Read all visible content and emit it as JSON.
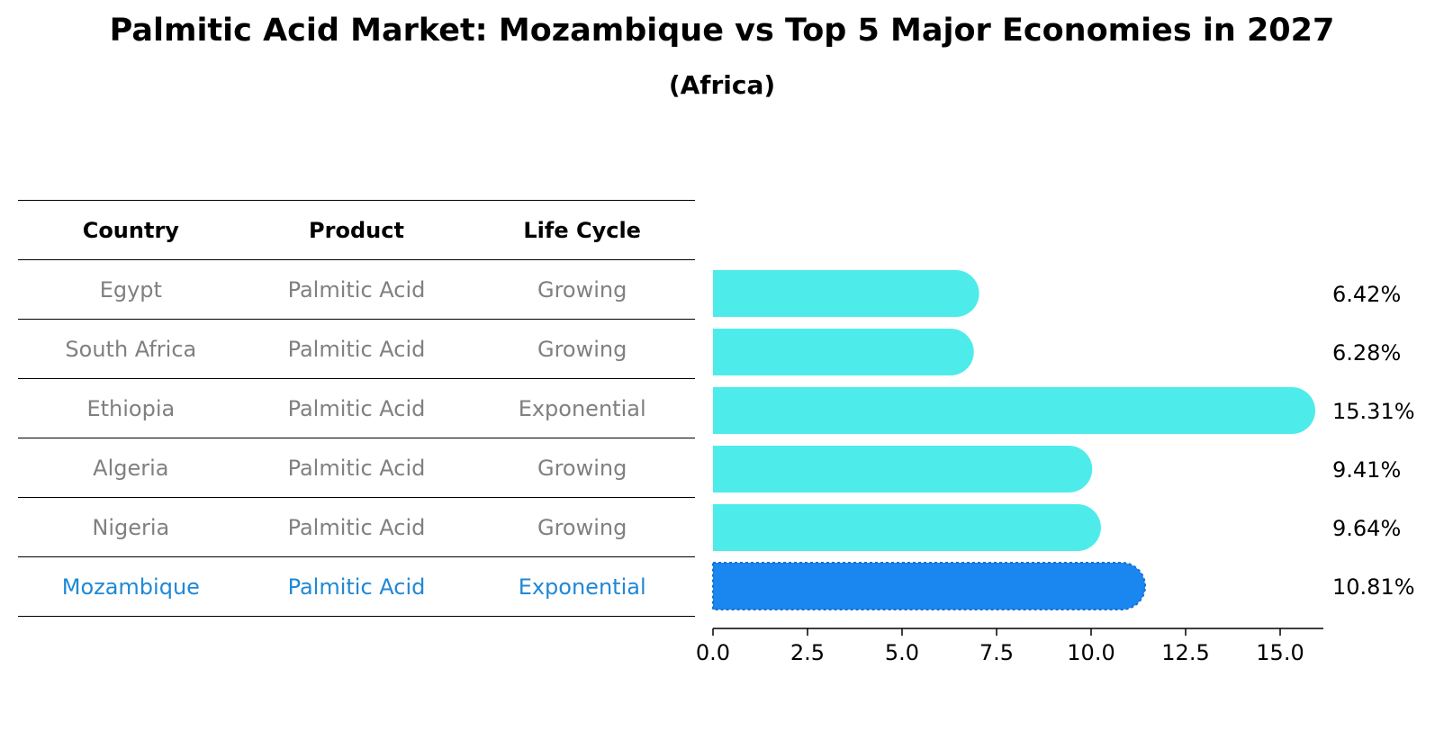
{
  "header": {
    "title": "Palmitic Acid Market: Mozambique vs Top 5 Major Economies in 2027",
    "subtitle": "(Africa)"
  },
  "table": {
    "columns": [
      "Country",
      "Product",
      "Life Cycle"
    ],
    "rows": [
      {
        "country": "Egypt",
        "product": "Palmitic Acid",
        "life_cycle": "Growing"
      },
      {
        "country": "South Africa",
        "product": "Palmitic Acid",
        "life_cycle": "Growing"
      },
      {
        "country": "Ethiopia",
        "product": "Palmitic Acid",
        "life_cycle": "Exponential"
      },
      {
        "country": "Algeria",
        "product": "Palmitic Acid",
        "life_cycle": "Growing"
      },
      {
        "country": "Nigeria",
        "product": "Palmitic Acid",
        "life_cycle": "Growing"
      },
      {
        "country": "Mozambique",
        "product": "Palmitic Acid",
        "life_cycle": "Exponential"
      }
    ]
  },
  "colors": {
    "bar": "#4deceb",
    "highlight_bar": "#1a86f0",
    "highlight_text": "#1f88d6",
    "muted_text": "#808080"
  },
  "chart_data": {
    "type": "bar",
    "orientation": "horizontal",
    "categories": [
      "Egypt",
      "South Africa",
      "Ethiopia",
      "Algeria",
      "Nigeria",
      "Mozambique"
    ],
    "values": [
      6.42,
      6.28,
      15.31,
      9.41,
      9.64,
      10.81
    ],
    "value_labels": [
      "6.42%",
      "6.28%",
      "15.31%",
      "9.41%",
      "9.64%",
      "10.81%"
    ],
    "highlight": "Mozambique",
    "xlim": [
      0,
      16.1
    ],
    "xticks": [
      0,
      2.5,
      5,
      7.5,
      10,
      12.5,
      15
    ],
    "xtick_labels": [
      "0.0",
      "2.5",
      "5.0",
      "7.5",
      "10.0",
      "12.5",
      "15.0"
    ],
    "title": "",
    "xlabel": "",
    "ylabel": "",
    "grid": false
  }
}
